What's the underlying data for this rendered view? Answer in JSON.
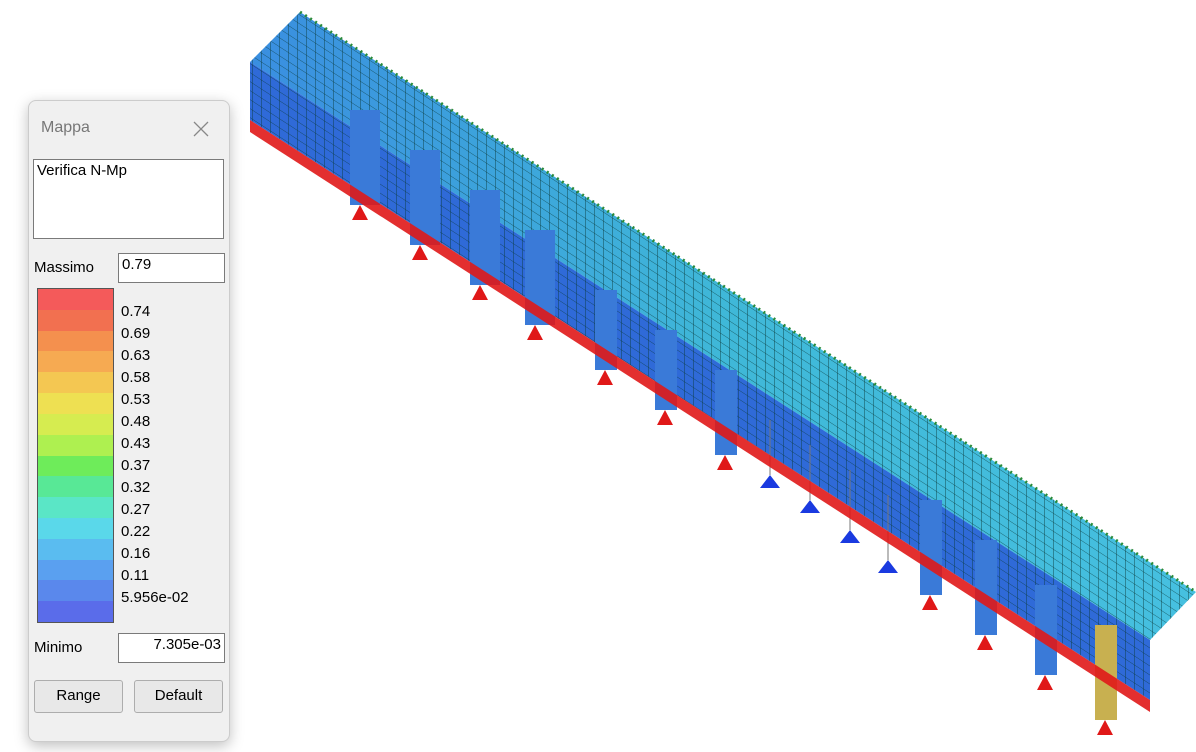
{
  "window": {
    "title": "Mappa"
  },
  "description": "Verifica N-Mp",
  "maximum": {
    "label": "Massimo",
    "value": "0.79"
  },
  "legend": {
    "labels": [
      "0.74",
      "0.69",
      "0.63",
      "0.58",
      "0.53",
      "0.48",
      "0.43",
      "0.37",
      "0.32",
      "0.27",
      "0.22",
      "0.16",
      "0.11",
      "5.956e-02"
    ],
    "colors": [
      "#f45a5a",
      "#f27050",
      "#f4904e",
      "#f6aa52",
      "#f4c752",
      "#eee052",
      "#d6ec50",
      "#aef050",
      "#6eec5a",
      "#58e896",
      "#5ae6c6",
      "#5ad8ea",
      "#5abcf0",
      "#5aa0f0",
      "#5a88ec",
      "#5a6cea"
    ]
  },
  "minimum": {
    "label": "Minimo",
    "value": "7.305e-03"
  },
  "buttons": [
    "Range",
    "Default"
  ]
}
